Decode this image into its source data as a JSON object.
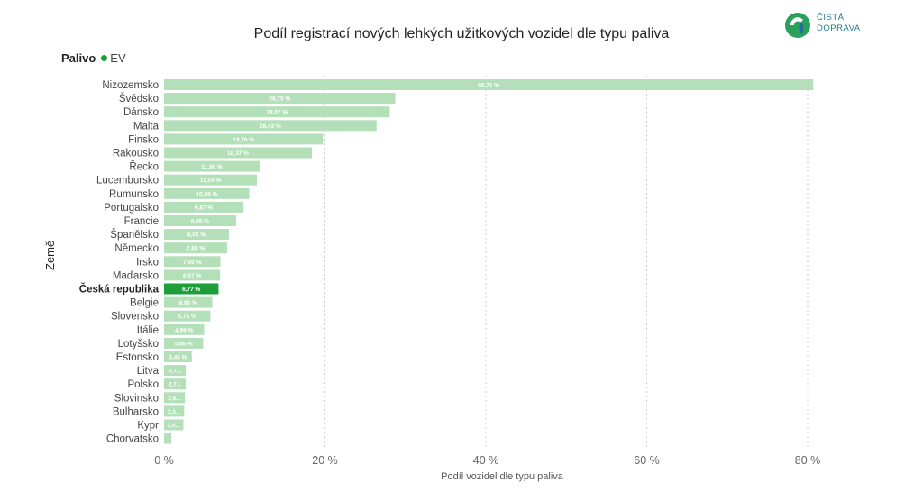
{
  "brand": {
    "line1": "ČISTÁ",
    "line2": "DOPRAVA"
  },
  "legend": {
    "label": "Palivo",
    "entry": "EV"
  },
  "chart_data": {
    "type": "bar",
    "orientation": "horizontal",
    "title": "Podíl registrací nových lehkých užitkových vozidel dle typu paliva",
    "xlabel": "Podíl vozidel dle typu paliva",
    "ylabel": "Země",
    "xlim": [
      0,
      80
    ],
    "x_ticks": [
      "0 %",
      "20 %",
      "40 %",
      "60 %",
      "80 %"
    ],
    "highlight": "Česká republika",
    "colors": {
      "bar": "#b3dfb9",
      "highlight": "#1e9e3a"
    },
    "categories": [
      "Nizozemsko",
      "Švédsko",
      "Dánsko",
      "Malta",
      "Finsko",
      "Rakousko",
      "Řecko",
      "Lucembursko",
      "Rumunsko",
      "Portugalsko",
      "Francie",
      "Španělsko",
      "Německo",
      "Irsko",
      "Maďarsko",
      "Česká republika",
      "Belgie",
      "Slovensko",
      "Itálie",
      "Lotyšsko",
      "Estonsko",
      "Litva",
      "Polsko",
      "Slovinsko",
      "Bulharsko",
      "Kypr",
      "Chorvatsko"
    ],
    "values": [
      80.71,
      28.75,
      28.07,
      26.42,
      19.76,
      18.37,
      11.9,
      11.54,
      10.59,
      9.87,
      8.95,
      8.06,
      7.85,
      7.0,
      6.97,
      6.77,
      6.0,
      5.75,
      4.99,
      4.86,
      3.45,
      2.7,
      2.7,
      2.6,
      2.5,
      2.4,
      0.9
    ],
    "labels": [
      "80,71 %",
      "28,75 %",
      "28,07 %",
      "26,42 %",
      "19,76 %",
      "18,37 %",
      "11,90 %",
      "11,54 %",
      "10,59 %",
      "9,87 %",
      "8,95 %",
      "8,06 %",
      "7,85 %",
      "7,00 %",
      "6,97 %",
      "6,77 %",
      "6,00 %",
      "5,75 %",
      "4,99 %",
      "4,86 %",
      "3,45 %",
      "2,7...",
      "2,7...",
      "2,6...",
      "2,5...",
      "2,4...",
      ""
    ]
  }
}
